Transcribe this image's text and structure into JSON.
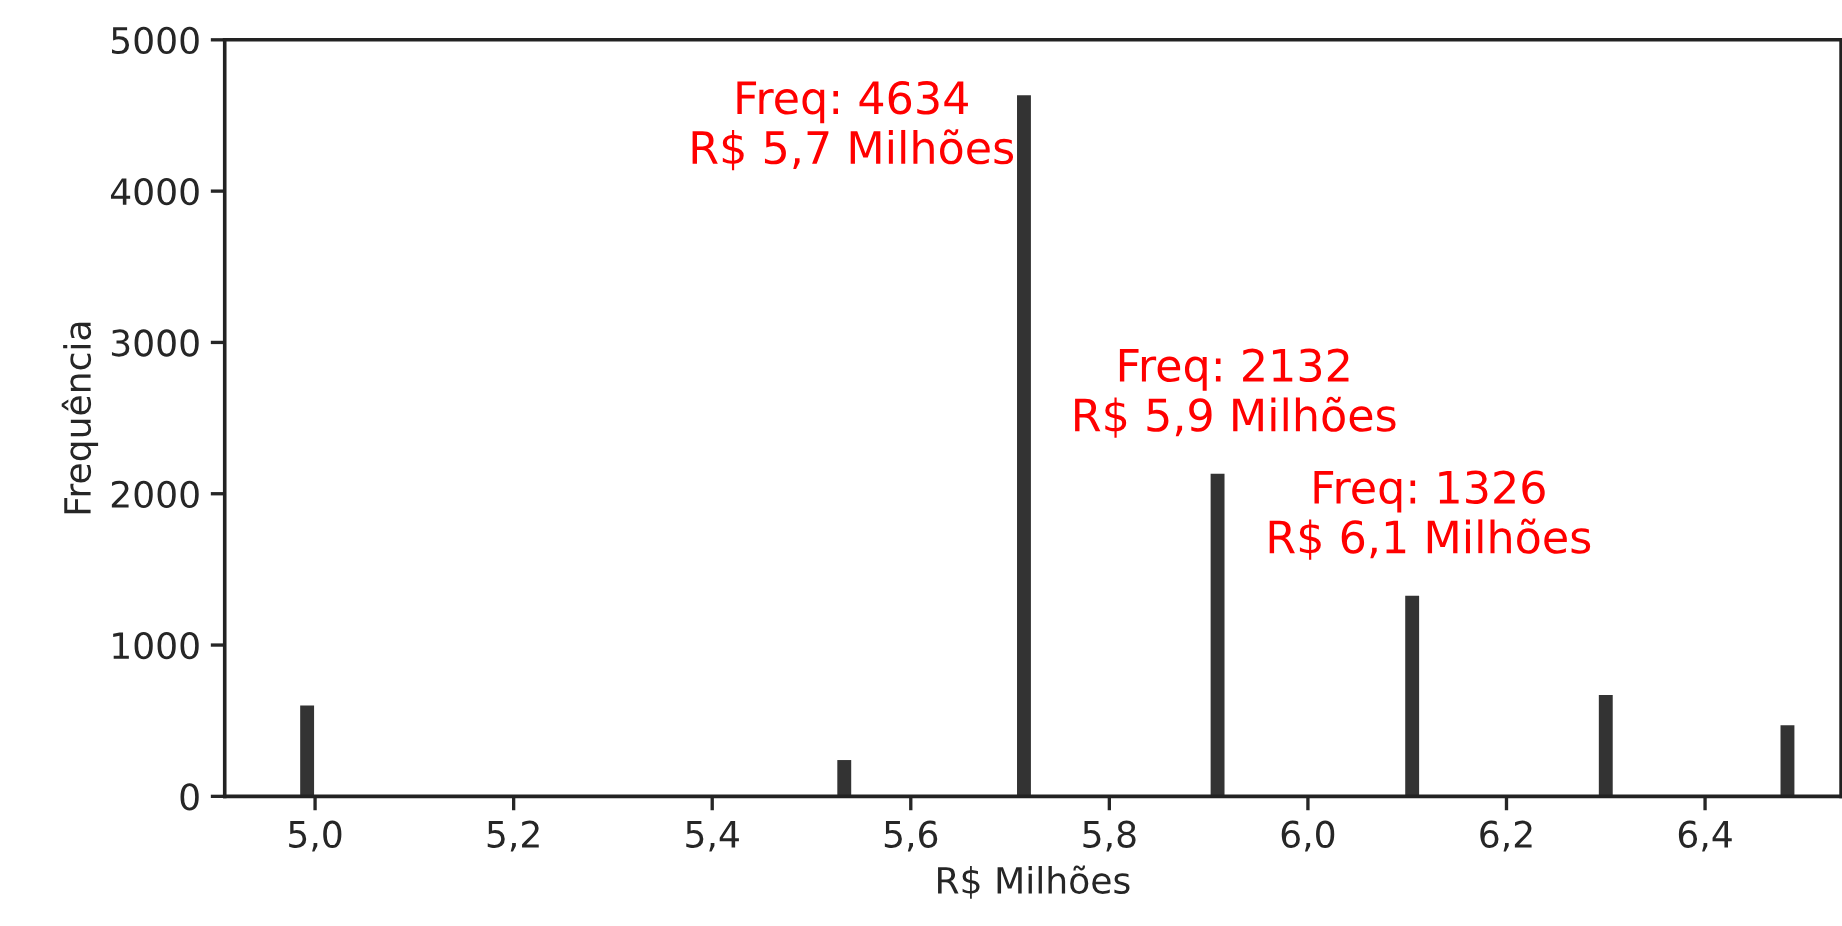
{
  "chart_data": {
    "type": "histogram",
    "xlabel": "R$ Milhões",
    "ylabel": "Frequência",
    "bins": [
      4.985,
      4.999,
      5.526,
      5.54,
      5.707,
      5.721,
      5.902,
      5.916,
      6.098,
      6.112,
      6.293,
      6.307,
      6.476,
      6.49
    ],
    "values": [
      600,
      0,
      240,
      0,
      4634,
      0,
      2132,
      0,
      1326,
      0,
      670,
      0,
      470
    ],
    "color": "#333333",
    "xlim": [
      4.909,
      6.537
    ],
    "xticks": [
      {
        "value": 5.0,
        "label": "5,0"
      },
      {
        "value": 5.2,
        "label": "5,2"
      },
      {
        "value": 5.4,
        "label": "5,4"
      },
      {
        "value": 5.6,
        "label": "5,6"
      },
      {
        "value": 5.8,
        "label": "5,8"
      },
      {
        "value": 6.0,
        "label": "6,0"
      },
      {
        "value": 6.2,
        "label": "6,2"
      },
      {
        "value": 6.4,
        "label": "6,4"
      }
    ],
    "ylim": [
      0,
      5000
    ],
    "yticks": [
      0,
      1000,
      2000,
      3000,
      4000,
      5000
    ],
    "annotations": [
      {
        "text": "Freq: 4634\nR$ 5,7 Milhões",
        "x": 5.714,
        "y": 4634
      },
      {
        "text": "Freq: 2132\nR$ 5,9 Milhões",
        "x": 5.909,
        "y": 2132
      },
      {
        "text": "Freq: 1326\nR$ 6,1 Milhões",
        "x": 6.105,
        "y": 1326
      }
    ],
    "grid": false
  }
}
